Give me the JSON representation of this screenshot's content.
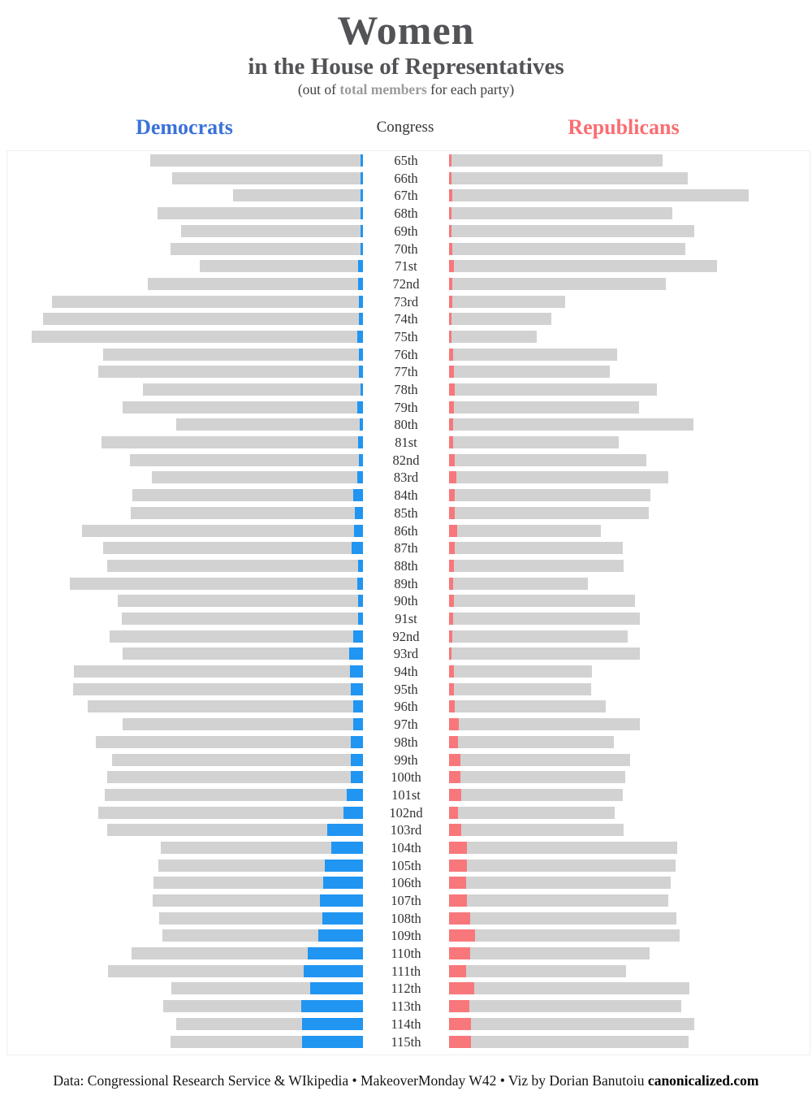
{
  "title": {
    "main": "Women",
    "subtitle": "in the House of Representatives",
    "note_prefix": "(out of ",
    "note_bold": "total members",
    "note_suffix": " for each party)"
  },
  "headers": {
    "left": "Democrats",
    "center": "Congress",
    "right": "Republicans"
  },
  "colors": {
    "democrat_women": "#2095f2",
    "republican_women": "#f8777b",
    "total_members_bar": "#d2d2d2",
    "democrat_header": "#3b72d9",
    "republican_header": "#fa6e73"
  },
  "footer": {
    "prefix": "Data: Congressional Research Service & WIkipedia • MakeoverMonday W42 • Viz by Dorian Banutoiu ",
    "brand": "canonicalized.com"
  },
  "chart_data": {
    "type": "bar",
    "orientation": "diverging-horizontal",
    "description": "Women in the House of Representatives out of total members for each party, by Congress",
    "categories": [
      "65th",
      "66th",
      "67th",
      "68th",
      "69th",
      "70th",
      "71st",
      "72nd",
      "73rd",
      "74th",
      "75th",
      "76th",
      "77th",
      "78th",
      "79th",
      "80th",
      "81st",
      "82nd",
      "83rd",
      "84th",
      "85th",
      "86th",
      "87th",
      "88th",
      "89th",
      "90th",
      "91st",
      "92nd",
      "93rd",
      "94th",
      "95th",
      "96th",
      "97th",
      "98th",
      "99th",
      "100th",
      "101st",
      "102nd",
      "103rd",
      "104th",
      "105th",
      "106th",
      "107th",
      "108th",
      "109th",
      "110th",
      "111th",
      "112th",
      "113th",
      "114th",
      "115th"
    ],
    "series": [
      {
        "name": "Democrat total members",
        "values": [
          214,
          192,
          131,
          207,
          183,
          194,
          164,
          217,
          313,
          322,
          334,
          262,
          267,
          222,
          242,
          188,
          263,
          235,
          213,
          232,
          234,
          283,
          262,
          258,
          295,
          247,
          243,
          255,
          242,
          291,
          292,
          277,
          242,
          269,
          253,
          258,
          260,
          267,
          258,
          204,
          206,
          211,
          212,
          205,
          202,
          233,
          257,
          193,
          201,
          188,
          194
        ]
      },
      {
        "name": "Democrat women",
        "values": [
          0,
          0,
          0,
          0,
          1,
          2,
          5,
          5,
          4,
          4,
          6,
          4,
          4,
          2,
          6,
          3,
          5,
          4,
          6,
          10,
          8,
          9,
          11,
          5,
          6,
          5,
          5,
          10,
          14,
          13,
          12,
          10,
          10,
          12,
          12,
          12,
          16,
          20,
          36,
          32,
          38,
          40,
          43,
          41,
          45,
          56,
          60,
          53,
          62,
          61,
          61
        ]
      },
      {
        "name": "Republican total members",
        "values": [
          215,
          240,
          302,
          225,
          247,
          238,
          270,
          218,
          117,
          103,
          88,
          169,
          162,
          209,
          191,
          246,
          171,
          199,
          221,
          203,
          201,
          153,
          175,
          176,
          140,
          187,
          192,
          180,
          192,
          144,
          143,
          158,
          192,
          166,
          182,
          177,
          175,
          167,
          176,
          230,
          228,
          223,
          221,
          229,
          232,
          202,
          178,
          242,
          234,
          247,
          241
        ]
      },
      {
        "name": "Republican women",
        "values": [
          1,
          0,
          3,
          1,
          2,
          3,
          5,
          3,
          3,
          2,
          1,
          4,
          5,
          6,
          5,
          4,
          4,
          6,
          7,
          6,
          6,
          8,
          6,
          5,
          4,
          5,
          4,
          3,
          2,
          5,
          5,
          6,
          10,
          9,
          11,
          11,
          12,
          9,
          12,
          18,
          18,
          17,
          18,
          21,
          26,
          21,
          17,
          25,
          20,
          22,
          22
        ]
      }
    ],
    "legend_position": "none",
    "grid": false,
    "value_axis_hidden": true
  }
}
